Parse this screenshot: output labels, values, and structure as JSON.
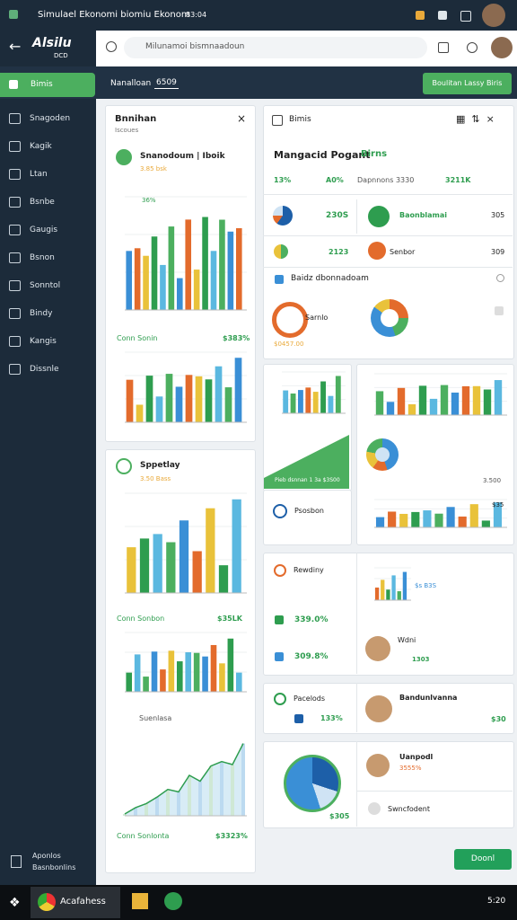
{
  "status_bar": {
    "title": "Simulael Ekonomi biomiu Ekonom",
    "code": "83:04"
  },
  "browser": {
    "logo": "Alsilu",
    "logo_sub": "DCD",
    "address": "Milunamoi bismnaadoun"
  },
  "header": {
    "tab": "Bimis",
    "breadcrumb": "Nanalloan",
    "badge": "6509",
    "button": "Boulitan Lassy Biris"
  },
  "sidebar": {
    "items": [
      "Snagoden",
      "Kagik",
      "Ltan",
      "Bsnbe",
      "Gaugis",
      "Bsnon",
      "Sonntol",
      "Bindy",
      "Kangis",
      "Dissnle"
    ],
    "footer": [
      "Aponlos",
      "Basnbonlins"
    ]
  },
  "left_panel": {
    "title": "Bnnihan",
    "subtitle": "Iscoues",
    "item": "Snanodoum | Iboik",
    "item_meta": "3.85 bsk",
    "chart_label": "36%",
    "section": "Conn Sonin",
    "section_value": "$383%"
  },
  "left_panel_2": {
    "title": "Sppetlay",
    "meta": "3.50 Bass",
    "section": "Conn Sonbon",
    "section_value": "$35LK",
    "chart_title": "Suenlasa",
    "footer": "Conn Sonlonta",
    "footer_value": "$3323%"
  },
  "right_panel": {
    "tab": "Bimis",
    "title": "Mangacid Pogant",
    "title_accent": "Birns",
    "stats": [
      "13%",
      "A0%",
      "Dapnnons 3330",
      "3211K"
    ],
    "items": [
      {
        "label": "230S"
      },
      {
        "label": "Baonblamai",
        "value": "305"
      },
      {
        "label": "2123"
      },
      {
        "label": "Senbor",
        "value": "309"
      }
    ],
    "section": "Baidz dbonnadoam",
    "donut_label": "Sarnlo",
    "donut_meta": "$0457.00"
  },
  "cards": {
    "area_caption": "Pieb dsnnan 1 3a $3S00",
    "psosbon": "Psosbon",
    "right_value": "3.500",
    "right_value2": "$35",
    "rewdiny": "Rewdiny",
    "rew_values": [
      "339.0%",
      "309.8%"
    ],
    "mini_value": "$s B3S",
    "person": "Wdni",
    "person_value": "1303",
    "pacelods": "Pacelods",
    "pacelods_value": "133%",
    "bandun": "Bandunlvanna",
    "bandun_value": "$30",
    "donut_value": "$305",
    "uanpodl": "Uanpodl",
    "uanpodl_meta": "3555%",
    "swnc": "Swncfodent"
  },
  "action_button": "Doonl",
  "taskbar": {
    "app": "Acafahess",
    "time": "5:20"
  }
}
